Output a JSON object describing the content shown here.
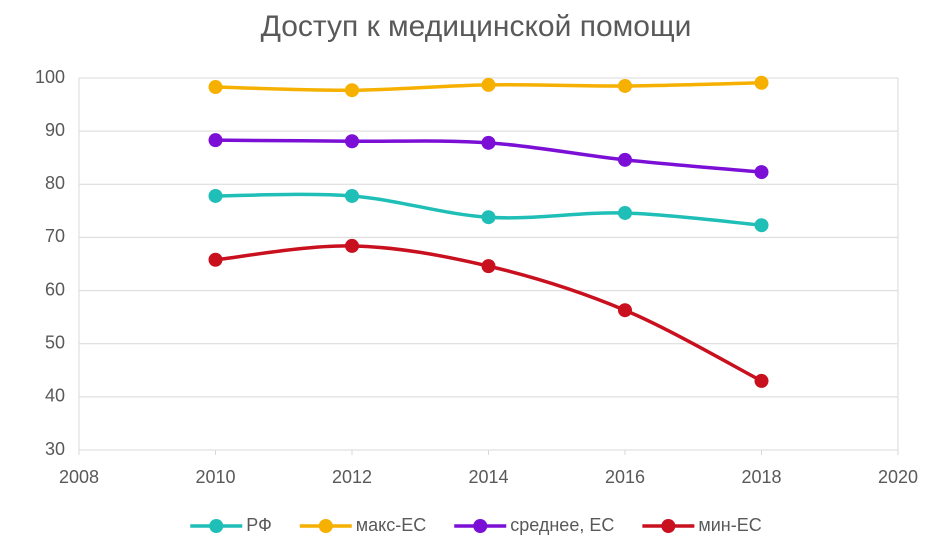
{
  "chart_data": {
    "type": "line",
    "title": "Доступ к медицинской помощи",
    "x": [
      2010,
      2012,
      2014,
      2016,
      2018
    ],
    "series": [
      {
        "name": "РФ",
        "color": "#1fbfb8",
        "values": [
          77.8,
          77.8,
          73.8,
          74.6,
          72.3
        ]
      },
      {
        "name": "макс-ЕС",
        "color": "#f5b000",
        "values": [
          98.3,
          97.7,
          98.7,
          98.5,
          99.1
        ]
      },
      {
        "name": "среднее, ЕС",
        "color": "#7b0fd6",
        "values": [
          88.3,
          88.1,
          87.8,
          84.6,
          82.3
        ]
      },
      {
        "name": "мин-ЕС",
        "color": "#c8101e",
        "values": [
          65.8,
          68.4,
          64.6,
          56.3,
          43.0
        ]
      }
    ],
    "xlim": [
      2008,
      2020
    ],
    "xticks": [
      2008,
      2010,
      2012,
      2014,
      2016,
      2018,
      2020
    ],
    "ylim": [
      30,
      100
    ],
    "yticks": [
      30,
      40,
      50,
      60,
      70,
      80,
      90,
      100
    ],
    "grid": true,
    "smooth": true,
    "legend": "bottom"
  }
}
